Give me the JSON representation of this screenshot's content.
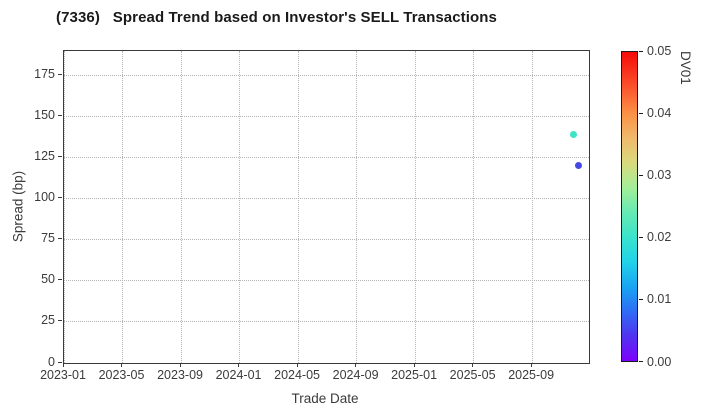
{
  "title": "(7336)   Spread Trend based on Investor's SELL Transactions",
  "chart_data": {
    "type": "scatter",
    "title": "(7336)   Spread Trend based on Investor's SELL Transactions",
    "xlabel": "Trade Date",
    "ylabel": "Spread (bp)",
    "xlim": [
      "2023-01-01",
      "2025-12-28"
    ],
    "ylim": [
      0,
      190
    ],
    "grid": true,
    "x_ticks": [
      {
        "label": "2023-01",
        "date": "2023-01-01"
      },
      {
        "label": "2023-05",
        "date": "2023-05-01"
      },
      {
        "label": "2023-09",
        "date": "2023-09-01"
      },
      {
        "label": "2024-01",
        "date": "2024-01-01"
      },
      {
        "label": "2024-05",
        "date": "2024-05-01"
      },
      {
        "label": "2024-09",
        "date": "2024-09-01"
      },
      {
        "label": "2025-01",
        "date": "2025-01-01"
      },
      {
        "label": "2025-05",
        "date": "2025-05-01"
      },
      {
        "label": "2025-09",
        "date": "2025-09-01"
      }
    ],
    "y_ticks": [
      {
        "label": "0",
        "value": 0
      },
      {
        "label": "25",
        "value": 25
      },
      {
        "label": "50",
        "value": 50
      },
      {
        "label": "75",
        "value": 75
      },
      {
        "label": "100",
        "value": 100
      },
      {
        "label": "125",
        "value": 125
      },
      {
        "label": "150",
        "value": 150
      },
      {
        "label": "175",
        "value": 175
      }
    ],
    "points": [
      {
        "date": "2025-11-27",
        "spread_bp": 139,
        "dv01": 0.02,
        "color": "#3DE4C5"
      },
      {
        "date": "2025-12-06",
        "spread_bp": 120,
        "dv01": 0.005,
        "color": "#4649E2"
      }
    ],
    "colorbar": {
      "label": "DV01",
      "min": 0,
      "max": 0.05,
      "colormap": "rainbow",
      "ticks": [
        {
          "label": "0.00",
          "value": 0
        },
        {
          "label": "0.01",
          "value": 0.01
        },
        {
          "label": "0.02",
          "value": 0.02
        },
        {
          "label": "0.03",
          "value": 0.03
        },
        {
          "label": "0.04",
          "value": 0.04
        },
        {
          "label": "0.05",
          "value": 0.05
        }
      ],
      "gradient_stops": [
        {
          "value": 0.05,
          "color": "#F50A0A"
        },
        {
          "value": 0.045,
          "color": "#FB4A28"
        },
        {
          "value": 0.04,
          "color": "#FB9246"
        },
        {
          "value": 0.036,
          "color": "#F0BA6C"
        },
        {
          "value": 0.032,
          "color": "#D9DA7E"
        },
        {
          "value": 0.028,
          "color": "#A2EF97"
        },
        {
          "value": 0.024,
          "color": "#66EAB4"
        },
        {
          "value": 0.02,
          "color": "#3AE3CD"
        },
        {
          "value": 0.016,
          "color": "#22D2E8"
        },
        {
          "value": 0.012,
          "color": "#18A5F2"
        },
        {
          "value": 0.008,
          "color": "#2F6CF5"
        },
        {
          "value": 0.004,
          "color": "#5133F0"
        },
        {
          "value": 0.0,
          "color": "#7D01FB"
        }
      ]
    }
  }
}
